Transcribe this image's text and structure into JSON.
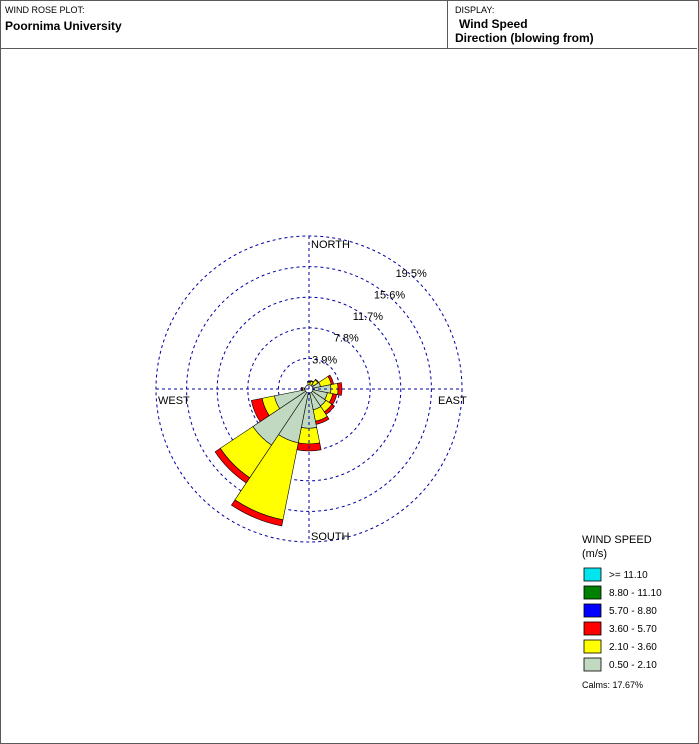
{
  "header": {
    "plot_label": "WIND ROSE PLOT:",
    "site_name": "Poornima University",
    "display_label": "DISPLAY:",
    "display_value": "Wind Speed",
    "display_direction": "Direction (blowing from)"
  },
  "chart_data": {
    "type": "wind-rose",
    "compass": {
      "north": "NORTH",
      "south": "SOUTH",
      "east": "EAST",
      "west": "WEST"
    },
    "ring_labels": [
      "3.9%",
      "7.8%",
      "11.7%",
      "15.6%",
      "19.5%"
    ],
    "ring_values": [
      3.9,
      7.8,
      11.7,
      15.6,
      19.5
    ],
    "legend": {
      "title": "WIND SPEED",
      "unit": "(m/s)",
      "classes": [
        {
          "label": ">= 11.10",
          "color": "#00e5ee"
        },
        {
          "label": "8.80 - 11.10",
          "color": "#008000"
        },
        {
          "label": "5.70 - 8.80",
          "color": "#0000ff"
        },
        {
          "label": "3.60 - 5.70",
          "color": "#ff0000"
        },
        {
          "label": "2.10 - 3.60",
          "color": "#ffff00"
        },
        {
          "label": "0.50 - 2.10",
          "color": "#c0d9c0"
        }
      ]
    },
    "calms": "Calms: 17.67%",
    "sectors": [
      {
        "direction_deg": 0,
        "bands": [
          0.5,
          0.4,
          0.1
        ]
      },
      {
        "direction_deg": 22.5,
        "bands": [
          0.5,
          0.5,
          0.1
        ]
      },
      {
        "direction_deg": 45,
        "bands": [
          0.7,
          0.7,
          0.1
        ]
      },
      {
        "direction_deg": 67.5,
        "bands": [
          1.5,
          1.4,
          0.3
        ]
      },
      {
        "direction_deg": 90,
        "bands": [
          2.8,
          0.9,
          0.5
        ]
      },
      {
        "direction_deg": 112.5,
        "bands": [
          2.4,
          0.7,
          0.5
        ]
      },
      {
        "direction_deg": 135,
        "bands": [
          2.6,
          0.9,
          0.4
        ]
      },
      {
        "direction_deg": 157.5,
        "bands": [
          2.7,
          1.5,
          0.4
        ]
      },
      {
        "direction_deg": 180,
        "bands": [
          5.0,
          2.0,
          0.9
        ]
      },
      {
        "direction_deg": 202.5,
        "bands": [
          7.0,
          10.0,
          0.8
        ]
      },
      {
        "direction_deg": 225,
        "bands": [
          8.6,
          5.0,
          0.8
        ]
      },
      {
        "direction_deg": 247.5,
        "bands": [
          4.5,
          1.6,
          1.4
        ]
      },
      {
        "direction_deg": 270,
        "bands": [
          0.6,
          0.2,
          0.2
        ]
      },
      {
        "direction_deg": 292.5,
        "bands": [
          0.3,
          0.1,
          0.1
        ]
      },
      {
        "direction_deg": 315,
        "bands": [
          0.3,
          0.1,
          0.05
        ]
      },
      {
        "direction_deg": 337.5,
        "bands": [
          0.3,
          0.2,
          0.05
        ]
      }
    ],
    "band_order": [
      "0.50 - 2.10",
      "2.10 - 3.60",
      "3.60 - 5.70"
    ]
  }
}
